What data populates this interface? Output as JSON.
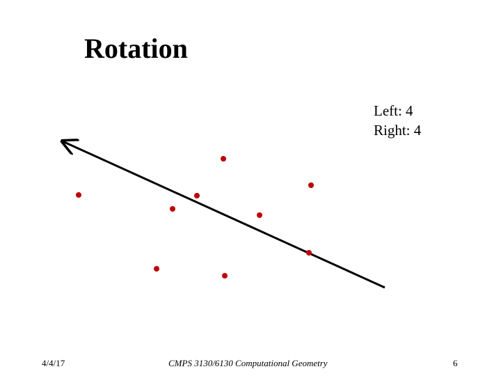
{
  "slide": {
    "title": "Rotation",
    "counts": {
      "left_text": "Left: 4",
      "right_text": "Right: 4"
    },
    "footer": {
      "date": "4/4/17",
      "course": "CMPS 3130/6130 Computational Geometry",
      "page": "6"
    }
  },
  "colors": {
    "point": "#c00000",
    "line": "#000000"
  }
}
